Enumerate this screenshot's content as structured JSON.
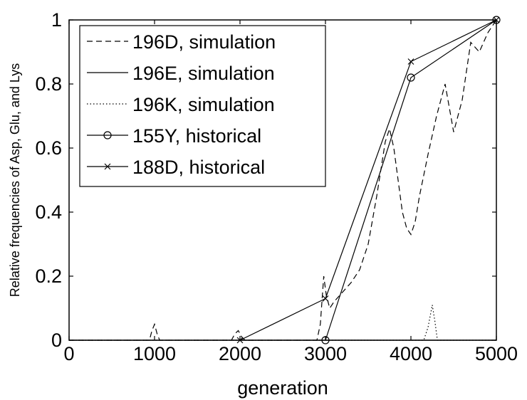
{
  "chart_data": {
    "type": "line",
    "xlabel": "generation",
    "ylabel": "Relative frequencies of Asp, Glu, and Lys",
    "xlim": [
      0,
      5000
    ],
    "ylim": [
      0,
      1
    ],
    "xticks": [
      0,
      1000,
      2000,
      3000,
      4000,
      5000
    ],
    "yticks": [
      0,
      0.2,
      0.4,
      0.6,
      0.8,
      1
    ],
    "xtick_labels": [
      "0",
      "1000",
      "2000",
      "3000",
      "4000",
      "5000"
    ],
    "ytick_labels": [
      "0",
      "0.2",
      "0.4",
      "0.6",
      "0.8",
      "1"
    ],
    "grid": false,
    "legend_position": "top-left",
    "series": [
      {
        "name": "196D, simulation",
        "style": "dashed",
        "x": [
          0,
          940,
          970,
          1000,
          1030,
          1060,
          1900,
          1940,
          1980,
          2020,
          2060,
          2900,
          2940,
          2980,
          3010,
          3050,
          3100,
          3200,
          3300,
          3400,
          3500,
          3600,
          3700,
          3750,
          3800,
          3850,
          3900,
          3950,
          4000,
          4050,
          4100,
          4200,
          4300,
          4400,
          4500,
          4600,
          4700,
          4800,
          4900,
          5000
        ],
        "y": [
          0,
          0,
          0.03,
          0.05,
          0.02,
          0,
          0,
          0.02,
          0.03,
          0.01,
          0,
          0,
          0.05,
          0.2,
          0.14,
          0.1,
          0.12,
          0.15,
          0.18,
          0.22,
          0.3,
          0.45,
          0.62,
          0.66,
          0.6,
          0.5,
          0.4,
          0.35,
          0.33,
          0.37,
          0.45,
          0.58,
          0.7,
          0.8,
          0.65,
          0.75,
          0.93,
          0.9,
          0.96,
          1.0
        ]
      },
      {
        "name": "196E, simulation",
        "style": "solid",
        "x": [
          0,
          5000
        ],
        "y": [
          0,
          0
        ]
      },
      {
        "name": "196K, simulation",
        "style": "dotted",
        "x": [
          0,
          4150,
          4200,
          4250,
          4280,
          4310,
          5000
        ],
        "y": [
          0,
          0,
          0.04,
          0.11,
          0.06,
          0,
          0
        ]
      },
      {
        "name": "155Y, historical",
        "style": "solid",
        "marker": "o",
        "x": [
          3000,
          4000,
          5000
        ],
        "y": [
          0,
          0.82,
          1.0
        ]
      },
      {
        "name": "188D, historical",
        "style": "solid",
        "marker": "x",
        "x": [
          2000,
          3000,
          4000,
          5000
        ],
        "y": [
          0,
          0.13,
          0.87,
          1.0
        ]
      }
    ]
  }
}
